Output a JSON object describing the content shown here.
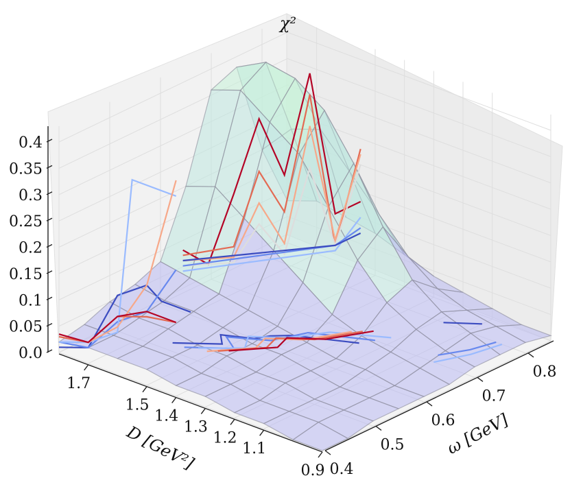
{
  "chart_data": {
    "type": "surface3d",
    "title": "",
    "xlabel": "ω [GeV]",
    "ylabel": "D [GeV²]",
    "zlabel": "χ²",
    "x_ticks": [
      "0.4",
      "0.5",
      "0.6",
      "0.7",
      "0.8"
    ],
    "y_ticks": [
      "0.9",
      "1.1",
      "1.2",
      "1.3",
      "1.4",
      "1.5",
      "1.7"
    ],
    "z_ticks": [
      "0.0",
      "0.05",
      "0.1",
      "0.15",
      "0.2",
      "0.25",
      "0.3",
      "0.35",
      "0.4"
    ],
    "xlim": [
      0.4,
      0.85
    ],
    "ylim": [
      0.9,
      1.8
    ],
    "zlim": [
      0.0,
      0.43
    ],
    "grid": true,
    "colors": {
      "surface_fill": "#b9b9f2",
      "surface_edge": "#8a8a9a",
      "peak_fill": "#bfe8e0",
      "peak_top": "#c7f2d8",
      "pane": "#f2f2f2",
      "grid": "#dedede"
    },
    "surface": {
      "x": [
        0.4,
        0.45,
        0.5,
        0.55,
        0.6,
        0.65,
        0.7,
        0.75,
        0.8,
        0.85
      ],
      "y": [
        1.8,
        1.7,
        1.6,
        1.5,
        1.4,
        1.3,
        1.2,
        1.1,
        1.0,
        0.9
      ],
      "z": [
        [
          0.02,
          0.03,
          0.05,
          0.06,
          0.08,
          0.2,
          0.36,
          0.38,
          0.2,
          0.08
        ],
        [
          0.03,
          0.03,
          0.04,
          0.05,
          0.07,
          0.22,
          0.38,
          0.41,
          0.26,
          0.1
        ],
        [
          0.03,
          0.03,
          0.04,
          0.05,
          0.06,
          0.18,
          0.34,
          0.4,
          0.28,
          0.09
        ],
        [
          0.03,
          0.03,
          0.03,
          0.04,
          0.05,
          0.14,
          0.3,
          0.36,
          0.22,
          0.08
        ],
        [
          0.02,
          0.02,
          0.03,
          0.03,
          0.04,
          0.1,
          0.22,
          0.28,
          0.16,
          0.06
        ],
        [
          0.02,
          0.02,
          0.02,
          0.03,
          0.03,
          0.06,
          0.14,
          0.18,
          0.1,
          0.04
        ],
        [
          0.01,
          0.01,
          0.02,
          0.02,
          0.02,
          0.04,
          0.08,
          0.1,
          0.06,
          0.03
        ],
        [
          0.01,
          0.01,
          0.01,
          0.01,
          0.02,
          0.03,
          0.05,
          0.06,
          0.04,
          0.02
        ],
        [
          0.0,
          0.01,
          0.01,
          0.01,
          0.01,
          0.02,
          0.03,
          0.04,
          0.03,
          0.01
        ],
        [
          0.0,
          0.0,
          0.01,
          0.01,
          0.01,
          0.01,
          0.02,
          0.02,
          0.02,
          0.01
        ]
      ]
    },
    "contours_x_wall": [
      {
        "color": "#3b4cc0",
        "points": [
          [
            1.8,
            0.01
          ],
          [
            1.7,
            0.03
          ],
          [
            1.6,
            0.15
          ],
          [
            1.5,
            0.19
          ],
          [
            1.45,
            0.17
          ],
          [
            1.35,
            0.17
          ]
        ]
      },
      {
        "color": "#6788ee",
        "points": [
          [
            1.8,
            0.02
          ],
          [
            1.7,
            0.03
          ],
          [
            1.6,
            0.1
          ],
          [
            1.5,
            0.14
          ],
          [
            1.4,
            0.24
          ]
        ]
      },
      {
        "color": "#9abbff",
        "points": [
          [
            1.8,
            0.02
          ],
          [
            1.7,
            0.04
          ],
          [
            1.6,
            0.08
          ],
          [
            1.55,
            0.38
          ],
          [
            1.4,
            0.38
          ]
        ]
      },
      {
        "color": "#f7a889",
        "points": [
          [
            1.8,
            0.03
          ],
          [
            1.7,
            0.04
          ],
          [
            1.6,
            0.09
          ],
          [
            1.5,
            0.19
          ],
          [
            1.4,
            0.41
          ]
        ]
      },
      {
        "color": "#e36a53",
        "points": [
          [
            1.8,
            0.03
          ],
          [
            1.7,
            0.04
          ],
          [
            1.6,
            0.11
          ],
          [
            1.5,
            0.13
          ],
          [
            1.4,
            0.14
          ]
        ]
      },
      {
        "color": "#b40426",
        "points": [
          [
            1.8,
            0.035
          ],
          [
            1.7,
            0.04
          ],
          [
            1.6,
            0.11
          ],
          [
            1.5,
            0.14
          ],
          [
            1.4,
            0.14
          ]
        ]
      }
    ],
    "contours_y_wall": [
      {
        "color": "#b40426",
        "points": [
          [
            0.5,
            0.2
          ],
          [
            0.55,
            0.15
          ],
          [
            0.6,
            0.26
          ],
          [
            0.65,
            0.38
          ],
          [
            0.7,
            0.25
          ],
          [
            0.75,
            0.42
          ],
          [
            0.8,
            0.13
          ],
          [
            0.85,
            0.13
          ]
        ]
      },
      {
        "color": "#e36a53",
        "points": [
          [
            0.5,
            0.19
          ],
          [
            0.6,
            0.16
          ],
          [
            0.65,
            0.28
          ],
          [
            0.7,
            0.18
          ],
          [
            0.75,
            0.38
          ],
          [
            0.8,
            0.07
          ],
          [
            0.85,
            0.23
          ]
        ]
      },
      {
        "color": "#f7a889",
        "points": [
          [
            0.5,
            0.18
          ],
          [
            0.6,
            0.14
          ],
          [
            0.65,
            0.22
          ],
          [
            0.7,
            0.12
          ],
          [
            0.75,
            0.32
          ],
          [
            0.8,
            0.08
          ],
          [
            0.85,
            0.22
          ]
        ]
      },
      {
        "color": "#dddddd",
        "points": [
          [
            0.5,
            0.17
          ],
          [
            0.6,
            0.13
          ],
          [
            0.65,
            0.18
          ],
          [
            0.7,
            0.1
          ],
          [
            0.75,
            0.24
          ],
          [
            0.8,
            0.07
          ],
          [
            0.85,
            0.2
          ]
        ]
      },
      {
        "color": "#9abbff",
        "points": [
          [
            0.5,
            0.16
          ],
          [
            0.8,
            0.06
          ],
          [
            0.85,
            0.1
          ]
        ]
      },
      {
        "color": "#6788ee",
        "points": [
          [
            0.5,
            0.17
          ],
          [
            0.8,
            0.07
          ],
          [
            0.85,
            0.08
          ]
        ]
      },
      {
        "color": "#3b4cc0",
        "points": [
          [
            0.5,
            0.18
          ],
          [
            0.8,
            0.07
          ],
          [
            0.85,
            0.07
          ]
        ]
      }
    ],
    "contours_floor": [
      {
        "color": "#3b4cc0",
        "points": [
          [
            0.52,
            1.62
          ],
          [
            0.56,
            1.52
          ],
          [
            0.58,
            1.56
          ],
          [
            0.6,
            1.48
          ],
          [
            0.62,
            1.46
          ],
          [
            0.64,
            1.42
          ],
          [
            0.68,
            1.26
          ]
        ]
      },
      {
        "color": "#6788ee",
        "points": [
          [
            0.52,
            1.58
          ],
          [
            0.56,
            1.48
          ],
          [
            0.58,
            1.54
          ],
          [
            0.61,
            1.44
          ],
          [
            0.66,
            1.4
          ],
          [
            0.7,
            1.24
          ]
        ]
      },
      {
        "color": "#9abbff",
        "points": [
          [
            0.53,
            1.55
          ],
          [
            0.57,
            1.46
          ],
          [
            0.6,
            1.5
          ],
          [
            0.63,
            1.42
          ],
          [
            0.68,
            1.36
          ],
          [
            0.72,
            1.22
          ]
        ]
      },
      {
        "color": "#f7a889",
        "points": [
          [
            0.53,
            1.52
          ],
          [
            0.58,
            1.44
          ],
          [
            0.61,
            1.46
          ],
          [
            0.64,
            1.38
          ],
          [
            0.7,
            1.32
          ]
        ]
      },
      {
        "color": "#e36a53",
        "points": [
          [
            0.54,
            1.5
          ],
          [
            0.59,
            1.42
          ],
          [
            0.62,
            1.44
          ],
          [
            0.65,
            1.36
          ],
          [
            0.71,
            1.3
          ]
        ]
      },
      {
        "color": "#b40426",
        "points": [
          [
            0.55,
            1.48
          ],
          [
            0.6,
            1.4
          ],
          [
            0.63,
            1.42
          ],
          [
            0.66,
            1.34
          ],
          [
            0.72,
            1.28
          ]
        ]
      },
      {
        "color": "#3b4cc0",
        "points": [
          [
            0.8,
            1.18
          ],
          [
            0.83,
            1.1
          ]
        ]
      },
      {
        "color": "#6788ee",
        "points": [
          [
            0.72,
            1.06
          ],
          [
            0.76,
            1.02
          ],
          [
            0.8,
            1.0
          ]
        ]
      },
      {
        "color": "#9abbff",
        "points": [
          [
            0.7,
            1.04
          ],
          [
            0.75,
            1.0
          ],
          [
            0.8,
            0.98
          ]
        ]
      }
    ]
  }
}
